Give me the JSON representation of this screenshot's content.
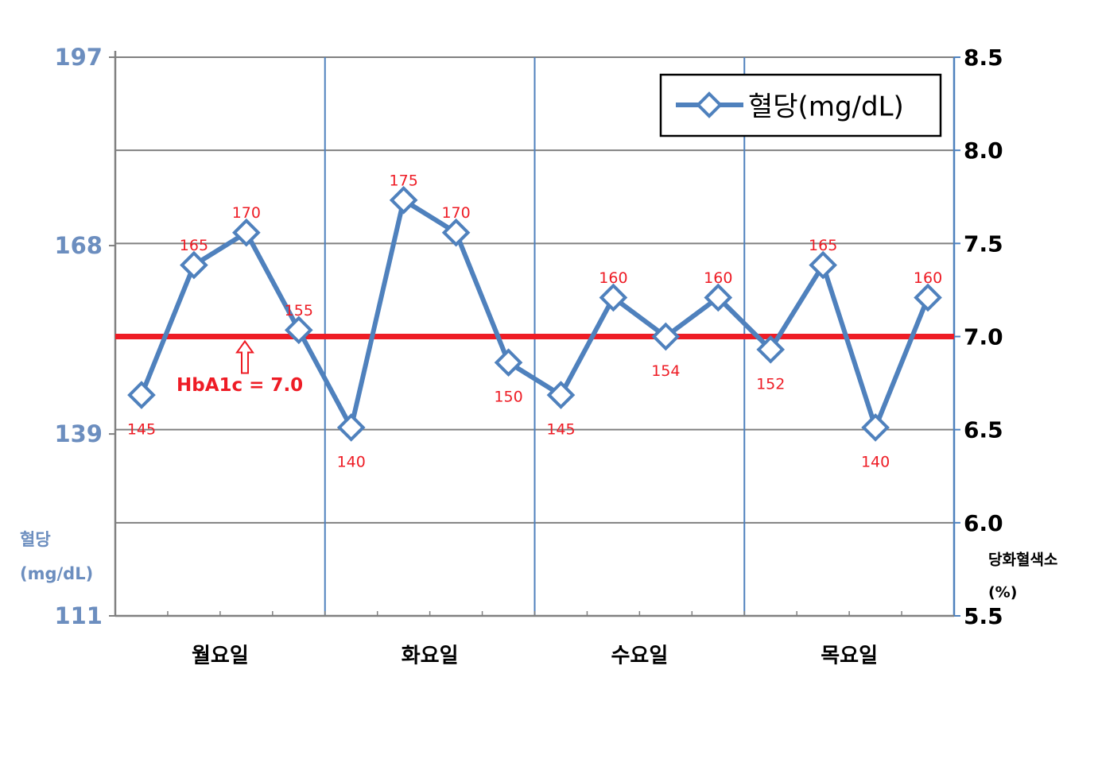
{
  "chart_data": {
    "type": "line",
    "categories": [
      "월요일",
      "화요일",
      "수요일",
      "목요일"
    ],
    "series": [
      {
        "name": "혈당(mg/dL)",
        "color": "#4f81bd",
        "values": [
          [
            145,
            165,
            170,
            155
          ],
          [
            140,
            175,
            170,
            150
          ],
          [
            145,
            160,
            154,
            160
          ],
          [
            152,
            165,
            140,
            160
          ]
        ]
      }
    ],
    "ylim": [
      111,
      197
    ],
    "yticks": [
      111,
      139,
      168,
      197
    ],
    "y2lim": [
      5.5,
      8.5
    ],
    "y2ticks": [
      5.5,
      {
        "value": 6,
        "label": "6.0"
      },
      6.5,
      {
        "value": 7,
        "label": "7.0"
      },
      7.5,
      {
        "value": 8,
        "label": "8.0"
      },
      8.5
    ],
    "ylabel": [
      "혈당",
      "(mg/dL)"
    ],
    "y2label": [
      "당화혈색소",
      "(%)"
    ],
    "reference_line": {
      "axis": "y2",
      "value": 7,
      "label": "HbA1c = 7.0",
      "color": "#ee1c25"
    },
    "grid": true,
    "legend": "upper right",
    "label_color": "#ee1c25"
  }
}
